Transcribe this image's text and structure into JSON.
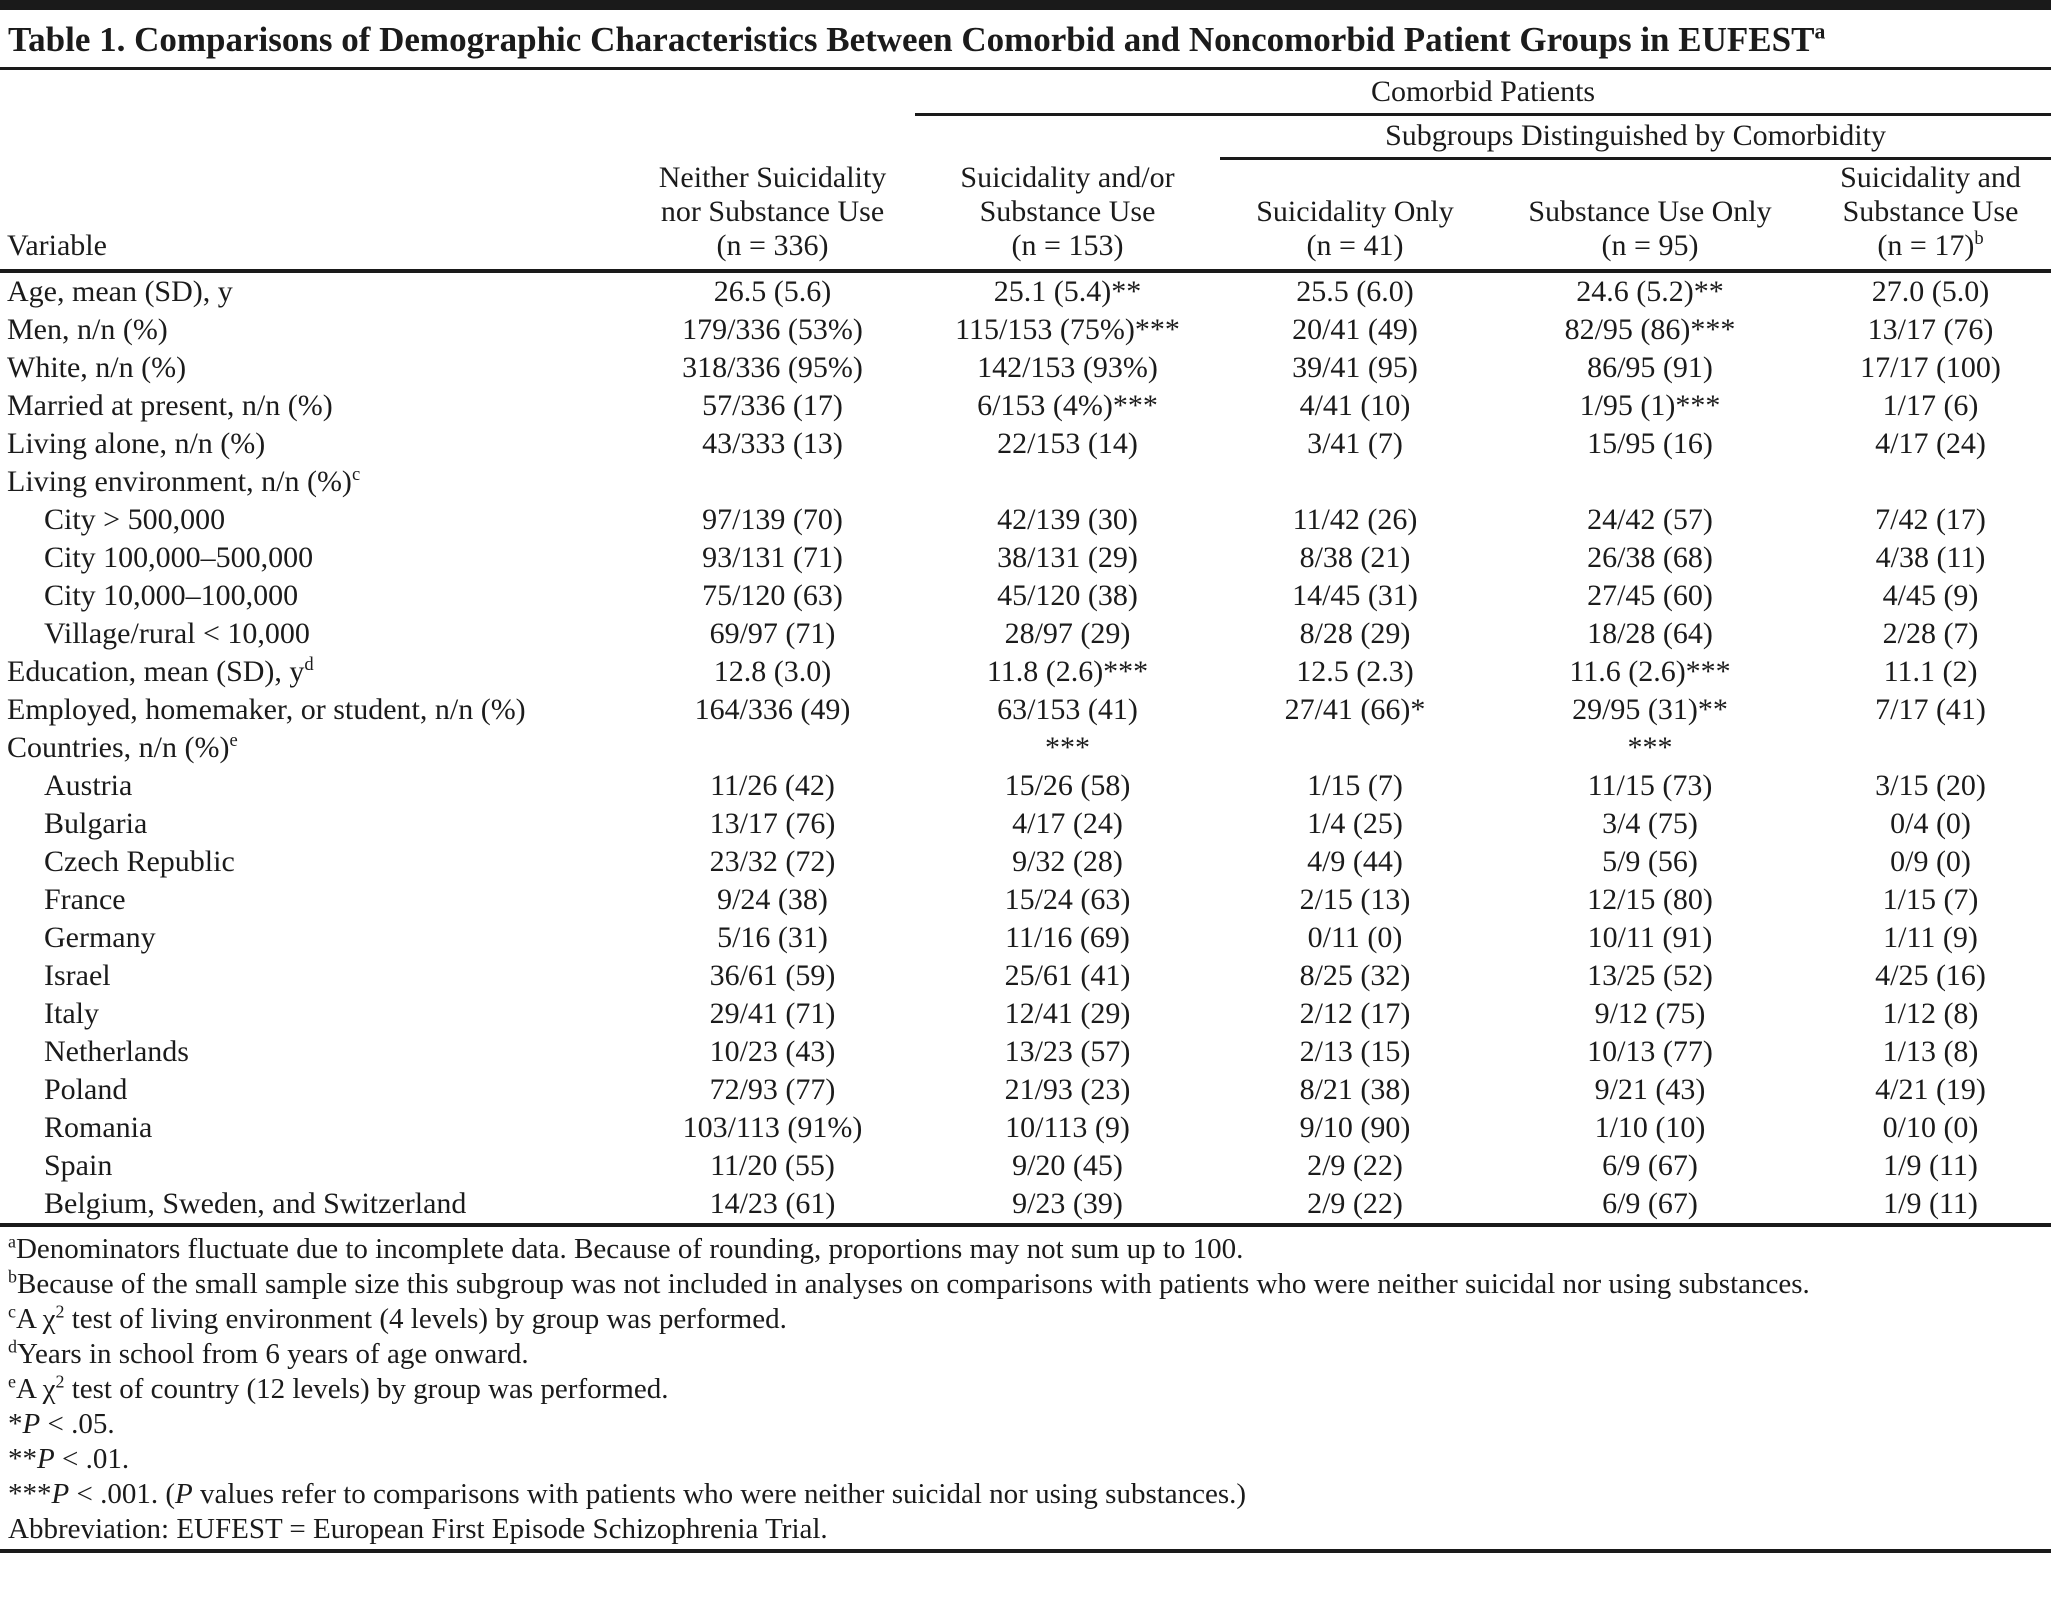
{
  "colors": {
    "text": "#1b1b1b",
    "rule": "#1a1a1a",
    "background": "#ffffff"
  },
  "title": {
    "text": "Table 1. Comparisons of Demographic Characteristics Between Comorbid and Noncomorbid Patient Groups in EUFEST",
    "sup": "a"
  },
  "header": {
    "variable_label": "Variable",
    "comorbid_span_label": "Comorbid Patients",
    "subgroups_span_label": "Subgroups Distinguished by Comorbidity",
    "columns": [
      {
        "lines": [
          "Neither Suicidality",
          "nor Substance Use"
        ],
        "n": "(n = 336)",
        "sup": ""
      },
      {
        "lines": [
          "Suicidality and/or",
          "Substance Use"
        ],
        "n": "(n = 153)",
        "sup": ""
      },
      {
        "lines": [
          "Suicidality Only"
        ],
        "n": "(n = 41)",
        "sup": ""
      },
      {
        "lines": [
          "Substance Use Only"
        ],
        "n": "(n = 95)",
        "sup": ""
      },
      {
        "lines": [
          "Suicidality and",
          "Substance Use"
        ],
        "n": "(n = 17)",
        "sup": "b"
      }
    ]
  },
  "table": {
    "rows": [
      {
        "label": "Age, mean (SD), y",
        "sup": "",
        "indent": false,
        "cells": [
          "26.5 (5.6)",
          "25.1 (5.4)**",
          "25.5 (6.0)",
          "24.6 (5.2)**",
          "27.0 (5.0)"
        ]
      },
      {
        "label": "Men, n/n (%)",
        "sup": "",
        "indent": false,
        "cells": [
          "179/336 (53%)",
          "115/153 (75%)***",
          "20/41 (49)",
          "82/95 (86)***",
          "13/17 (76)"
        ]
      },
      {
        "label": "White, n/n (%)",
        "sup": "",
        "indent": false,
        "cells": [
          "318/336 (95%)",
          "142/153 (93%)",
          "39/41 (95)",
          "86/95 (91)",
          "17/17 (100)"
        ]
      },
      {
        "label": "Married at present, n/n (%)",
        "sup": "",
        "indent": false,
        "cells": [
          "57/336 (17)",
          "6/153 (4%)***",
          "4/41 (10)",
          "1/95 (1)***",
          "1/17 (6)"
        ]
      },
      {
        "label": "Living alone, n/n (%)",
        "sup": "",
        "indent": false,
        "cells": [
          "43/333 (13)",
          "22/153 (14)",
          "3/41 (7)",
          "15/95 (16)",
          "4/17 (24)"
        ]
      },
      {
        "label": "Living environment, n/n (%)",
        "sup": "c",
        "indent": false,
        "cells": [
          "",
          "",
          "",
          "",
          ""
        ]
      },
      {
        "label": "City > 500,000",
        "sup": "",
        "indent": true,
        "cells": [
          "97/139 (70)",
          "42/139 (30)",
          "11/42 (26)",
          "24/42 (57)",
          "7/42 (17)"
        ]
      },
      {
        "label": "City 100,000–500,000",
        "sup": "",
        "indent": true,
        "cells": [
          "93/131 (71)",
          "38/131 (29)",
          "8/38 (21)",
          "26/38 (68)",
          "4/38 (11)"
        ]
      },
      {
        "label": "City 10,000–100,000",
        "sup": "",
        "indent": true,
        "cells": [
          "75/120 (63)",
          "45/120 (38)",
          "14/45 (31)",
          "27/45 (60)",
          "4/45 (9)"
        ]
      },
      {
        "label": "Village/rural < 10,000",
        "sup": "",
        "indent": true,
        "cells": [
          "69/97 (71)",
          "28/97 (29)",
          "8/28 (29)",
          "18/28 (64)",
          "2/28 (7)"
        ]
      },
      {
        "label": "Education, mean (SD), y",
        "sup": "d",
        "indent": false,
        "cells": [
          "12.8 (3.0)",
          "11.8 (2.6)***",
          "12.5 (2.3)",
          "11.6 (2.6)***",
          "11.1 (2)"
        ]
      },
      {
        "label": "Employed, homemaker, or student, n/n (%)",
        "sup": "",
        "indent": false,
        "cells": [
          "164/336 (49)",
          "63/153 (41)",
          "27/41 (66)*",
          "29/95 (31)**",
          "7/17 (41)"
        ]
      },
      {
        "label": "Countries, n/n (%)",
        "sup": "e",
        "indent": false,
        "cells": [
          "",
          "***",
          "",
          "***",
          ""
        ]
      },
      {
        "label": "Austria",
        "sup": "",
        "indent": true,
        "cells": [
          "11/26 (42)",
          "15/26 (58)",
          "1/15 (7)",
          "11/15 (73)",
          "3/15 (20)"
        ]
      },
      {
        "label": "Bulgaria",
        "sup": "",
        "indent": true,
        "cells": [
          "13/17 (76)",
          "4/17 (24)",
          "1/4 (25)",
          "3/4 (75)",
          "0/4 (0)"
        ]
      },
      {
        "label": "Czech Republic",
        "sup": "",
        "indent": true,
        "cells": [
          "23/32 (72)",
          "9/32 (28)",
          "4/9 (44)",
          "5/9 (56)",
          "0/9 (0)"
        ]
      },
      {
        "label": "France",
        "sup": "",
        "indent": true,
        "cells": [
          "9/24 (38)",
          "15/24 (63)",
          "2/15 (13)",
          "12/15 (80)",
          "1/15 (7)"
        ]
      },
      {
        "label": "Germany",
        "sup": "",
        "indent": true,
        "cells": [
          "5/16 (31)",
          "11/16 (69)",
          "0/11 (0)",
          "10/11 (91)",
          "1/11 (9)"
        ]
      },
      {
        "label": "Israel",
        "sup": "",
        "indent": true,
        "cells": [
          "36/61 (59)",
          "25/61 (41)",
          "8/25 (32)",
          "13/25 (52)",
          "4/25 (16)"
        ]
      },
      {
        "label": "Italy",
        "sup": "",
        "indent": true,
        "cells": [
          "29/41 (71)",
          "12/41 (29)",
          "2/12 (17)",
          "9/12 (75)",
          "1/12 (8)"
        ]
      },
      {
        "label": "Netherlands",
        "sup": "",
        "indent": true,
        "cells": [
          "10/23 (43)",
          "13/23 (57)",
          "2/13 (15)",
          "10/13 (77)",
          "1/13 (8)"
        ]
      },
      {
        "label": "Poland",
        "sup": "",
        "indent": true,
        "cells": [
          "72/93 (77)",
          "21/93 (23)",
          "8/21 (38)",
          "9/21 (43)",
          "4/21 (19)"
        ]
      },
      {
        "label": "Romania",
        "sup": "",
        "indent": true,
        "cells": [
          "103/113 (91%)",
          "10/113 (9)",
          "9/10 (90)",
          "1/10 (10)",
          "0/10 (0)"
        ]
      },
      {
        "label": "Spain",
        "sup": "",
        "indent": true,
        "cells": [
          "11/20 (55)",
          "9/20 (45)",
          "2/9 (22)",
          "6/9 (67)",
          "1/9 (11)"
        ]
      },
      {
        "label": "Belgium, Sweden, and Switzerland",
        "sup": "",
        "indent": true,
        "cells": [
          "14/23 (61)",
          "9/23 (39)",
          "2/9 (22)",
          "6/9 (67)",
          "1/9 (11)"
        ]
      }
    ]
  },
  "footnotes": [
    {
      "segments": [
        {
          "s": "sup",
          "t": "a"
        },
        {
          "s": "",
          "t": "Denominators fluctuate due to incomplete data. Because of rounding, proportions may not sum up to 100."
        }
      ]
    },
    {
      "segments": [
        {
          "s": "sup",
          "t": "b"
        },
        {
          "s": "",
          "t": "Because of the small sample size this subgroup was not included in analyses on comparisons with patients who were neither suicidal nor using substances."
        }
      ]
    },
    {
      "segments": [
        {
          "s": "sup",
          "t": "c"
        },
        {
          "s": "",
          "t": "A χ"
        },
        {
          "s": "sup",
          "t": "2"
        },
        {
          "s": "",
          "t": " test of living environment (4 levels) by group was performed."
        }
      ]
    },
    {
      "segments": [
        {
          "s": "sup",
          "t": "d"
        },
        {
          "s": "",
          "t": "Years in school from 6 years of age onward."
        }
      ]
    },
    {
      "segments": [
        {
          "s": "sup",
          "t": "e"
        },
        {
          "s": "",
          "t": "A χ"
        },
        {
          "s": "sup",
          "t": "2"
        },
        {
          "s": "",
          "t": " test of country (12 levels) by group was performed."
        }
      ]
    },
    {
      "segments": [
        {
          "s": "",
          "t": "*"
        },
        {
          "s": "i",
          "t": "P"
        },
        {
          "s": "",
          "t": " < .05."
        }
      ]
    },
    {
      "segments": [
        {
          "s": "",
          "t": "**"
        },
        {
          "s": "i",
          "t": "P"
        },
        {
          "s": "",
          "t": " < .01."
        }
      ]
    },
    {
      "segments": [
        {
          "s": "",
          "t": "***"
        },
        {
          "s": "i",
          "t": "P"
        },
        {
          "s": "",
          "t": " < .001. ("
        },
        {
          "s": "i",
          "t": "P"
        },
        {
          "s": "",
          "t": " values refer to comparisons with patients who were neither suicidal nor using substances.)"
        }
      ]
    },
    {
      "segments": [
        {
          "s": "",
          "t": "Abbreviation: EUFEST = European First Episode Schizophrenia Trial."
        }
      ]
    }
  ]
}
